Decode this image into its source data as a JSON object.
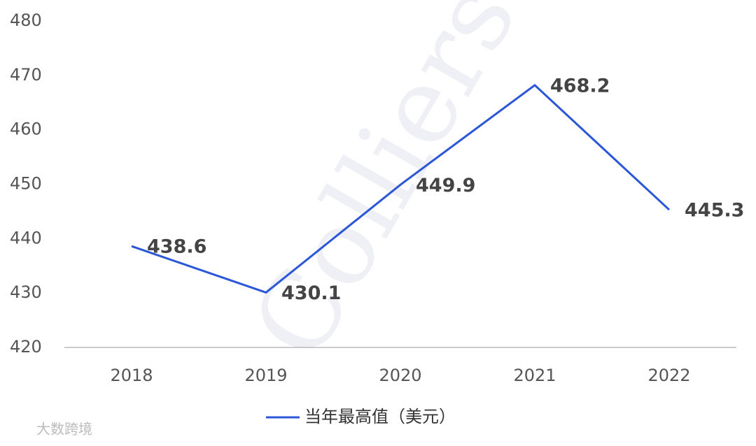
{
  "chart_data": {
    "type": "line",
    "categories": [
      "2018",
      "2019",
      "2020",
      "2021",
      "2022"
    ],
    "series": [
      {
        "name": "当年最高值（美元）",
        "color": "#2a56d8",
        "values": [
          438.6,
          430.1,
          449.9,
          468.2,
          445.3
        ]
      }
    ],
    "ylim": [
      420,
      480
    ],
    "yticks": [
      420,
      430,
      440,
      450,
      460,
      470,
      480
    ],
    "grid": false,
    "watermarks": [
      "Colliers",
      "大数跨境"
    ]
  }
}
